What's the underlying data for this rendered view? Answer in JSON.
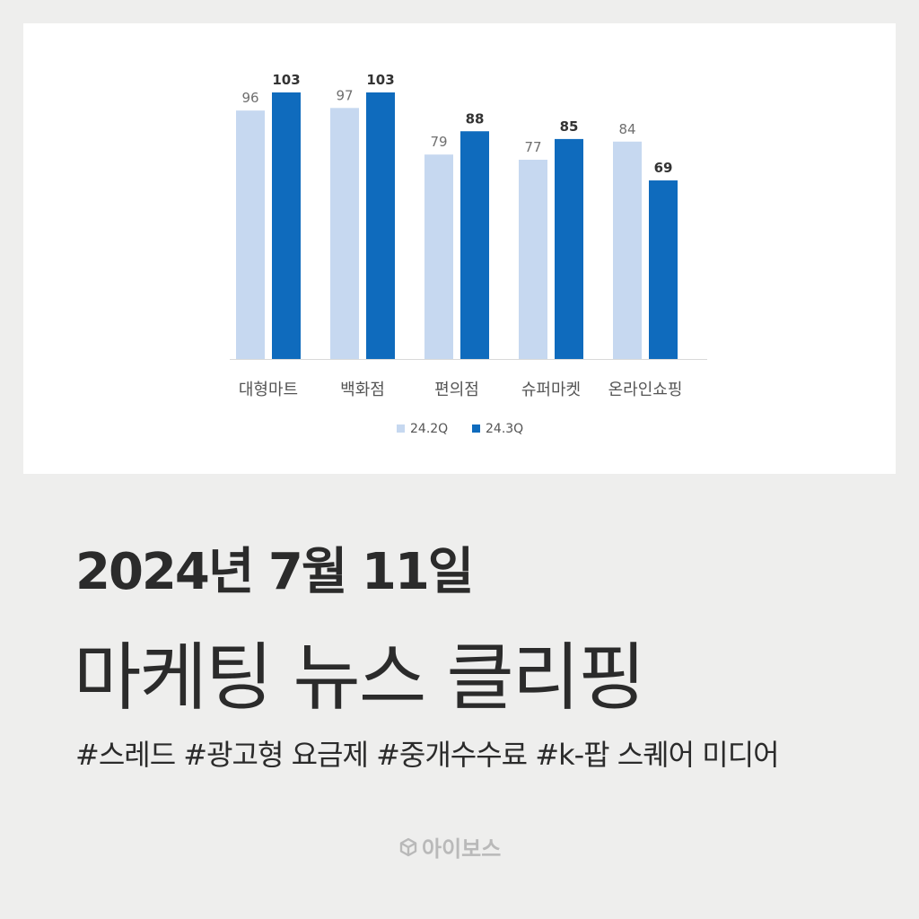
{
  "chart_data": {
    "type": "bar",
    "categories": [
      "대형마트",
      "백화점",
      "편의점",
      "슈퍼마켓",
      "온라인쇼핑"
    ],
    "series": [
      {
        "name": "24.2Q",
        "values": [
          96,
          97,
          79,
          77,
          84
        ],
        "color": "#c6d8f0"
      },
      {
        "name": "24.3Q",
        "values": [
          103,
          103,
          88,
          85,
          69
        ],
        "color": "#0f6bbd"
      }
    ],
    "ylim": [
      0,
      103
    ],
    "grid": false,
    "legend": "bottom"
  },
  "headline": {
    "date": "2024년 7월 11일",
    "title": "마케팅 뉴스 클리핑",
    "tags": "#스레드 #광고형 요금제 #중개수수료 #k-팝 스퀘어 미디어"
  },
  "brand": {
    "name": "아이보스",
    "icon": "box-icon"
  }
}
